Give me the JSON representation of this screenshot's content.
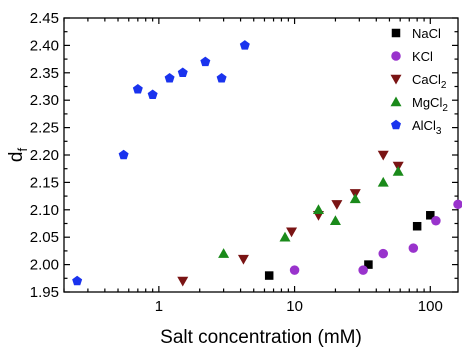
{
  "chart_data": {
    "type": "scatter",
    "xlabel": "Salt concentration (mM)",
    "ylabel": "d",
    "ylabel_subscript": "f",
    "x_scale": "log",
    "xlim": [
      0.2,
      160
    ],
    "ylim": [
      1.95,
      2.45
    ],
    "x_ticks": [
      1,
      10,
      100
    ],
    "x_tick_labels": [
      "1",
      "10",
      "100"
    ],
    "y_ticks": [
      1.95,
      2.0,
      2.05,
      2.1,
      2.15,
      2.2,
      2.25,
      2.3,
      2.35,
      2.4,
      2.45
    ],
    "y_tick_labels": [
      "1.95",
      "2.00",
      "2.05",
      "2.10",
      "2.15",
      "2.20",
      "2.25",
      "2.30",
      "2.35",
      "2.40",
      "2.45"
    ],
    "grid": false,
    "legend_position": "top-right",
    "series": [
      {
        "name": "NaCl",
        "name_base": "NaCl",
        "name_subscript": "",
        "marker": "square",
        "color": "#000000",
        "x": [
          6.5,
          35,
          80,
          100
        ],
        "y": [
          1.98,
          2.0,
          2.07,
          2.09
        ]
      },
      {
        "name": "KCl",
        "name_base": "KCl",
        "name_subscript": "",
        "marker": "circle",
        "color": "#9933cc",
        "x": [
          10,
          32,
          45,
          75,
          110,
          160
        ],
        "y": [
          1.99,
          1.99,
          2.02,
          2.03,
          2.08,
          2.11
        ]
      },
      {
        "name": "CaCl2",
        "name_base": "CaCl",
        "name_subscript": "2",
        "marker": "triangle-down",
        "color": "#7a1414",
        "x": [
          1.5,
          4.2,
          9.5,
          15,
          20.5,
          28,
          45,
          58
        ],
        "y": [
          1.97,
          2.01,
          2.06,
          2.09,
          2.11,
          2.13,
          2.2,
          2.18
        ]
      },
      {
        "name": "MgCl2",
        "name_base": "MgCl",
        "name_subscript": "2",
        "marker": "triangle-up",
        "color": "#1a8a1a",
        "x": [
          3,
          8.5,
          15,
          20,
          28,
          45,
          58
        ],
        "y": [
          2.02,
          2.05,
          2.1,
          2.08,
          2.12,
          2.15,
          2.17
        ]
      },
      {
        "name": "AlCl3",
        "name_base": "AlCl",
        "name_subscript": "3",
        "marker": "pentagon",
        "color": "#1a33ee",
        "x": [
          0.25,
          0.55,
          0.7,
          0.9,
          1.2,
          1.5,
          2.2,
          2.9,
          4.3
        ],
        "y": [
          1.97,
          2.2,
          2.32,
          2.31,
          2.34,
          2.35,
          2.37,
          2.34,
          2.4
        ]
      }
    ]
  }
}
